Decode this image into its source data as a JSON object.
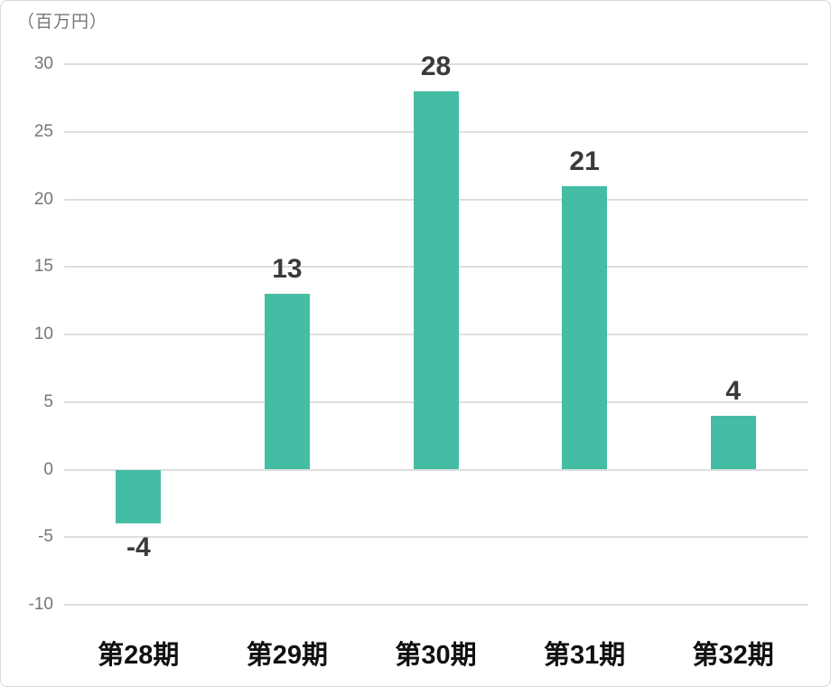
{
  "chart_data": {
    "type": "bar",
    "title": "",
    "unit_label": "（百万円）",
    "categories": [
      "第28期",
      "第29期",
      "第30期",
      "第31期",
      "第32期"
    ],
    "values": [
      -4,
      13,
      28,
      21,
      4
    ],
    "data_labels": [
      "-4",
      "13",
      "28",
      "21",
      "4"
    ],
    "yticks": [
      30,
      25,
      20,
      15,
      10,
      5,
      0,
      -5,
      -10
    ],
    "ylim": [
      -10,
      30
    ],
    "xlabel": "",
    "ylabel": "（百万円）",
    "grid": true,
    "legend_position": "none",
    "colors": {
      "bar": "#45bca4",
      "gridline": "#dedede",
      "tick_label": "#767676",
      "data_label": "#3a3a3a",
      "category_label": "#111111",
      "frame_border": "#d9d9d9",
      "background": "#ffffff"
    }
  }
}
